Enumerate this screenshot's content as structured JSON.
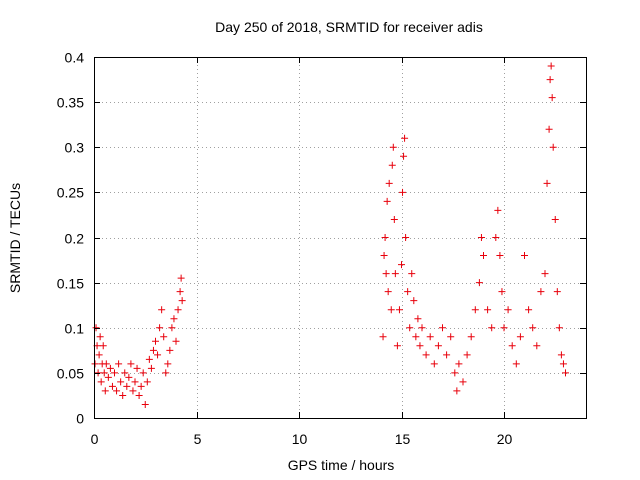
{
  "chart_data": {
    "type": "scatter",
    "title": "Day 250 of 2018, SRMTID for receiver adis",
    "xlabel": "GPS time / hours",
    "ylabel": "SRMTID / TECUs",
    "xlim": [
      0,
      24
    ],
    "ylim": [
      0,
      0.4
    ],
    "x_ticks": [
      0,
      5,
      10,
      15,
      20
    ],
    "x_tick_labels": [
      "0",
      "5",
      "10",
      "15",
      "20"
    ],
    "y_ticks": [
      0,
      0.05,
      0.1,
      0.15,
      0.2,
      0.25,
      0.3,
      0.35,
      0.4
    ],
    "y_tick_labels": [
      "0",
      "0.05",
      "0.1",
      "0.15",
      "0.2",
      "0.25",
      "0.3",
      "0.35",
      "0.4"
    ],
    "grid": true,
    "marker": "+",
    "color": "#e8000b",
    "series": [
      {
        "name": "SRMTID",
        "points": [
          [
            0.05,
            0.06
          ],
          [
            0.1,
            0.1
          ],
          [
            0.15,
            0.08
          ],
          [
            0.2,
            0.05
          ],
          [
            0.25,
            0.07
          ],
          [
            0.3,
            0.09
          ],
          [
            0.35,
            0.04
          ],
          [
            0.4,
            0.06
          ],
          [
            0.45,
            0.08
          ],
          [
            0.5,
            0.05
          ],
          [
            0.55,
            0.03
          ],
          [
            0.6,
            0.06
          ],
          [
            0.7,
            0.045
          ],
          [
            0.8,
            0.055
          ],
          [
            0.9,
            0.035
          ],
          [
            1.0,
            0.05
          ],
          [
            1.1,
            0.03
          ],
          [
            1.2,
            0.06
          ],
          [
            1.3,
            0.04
          ],
          [
            1.4,
            0.025
          ],
          [
            1.5,
            0.05
          ],
          [
            1.6,
            0.035
          ],
          [
            1.7,
            0.045
          ],
          [
            1.8,
            0.06
          ],
          [
            1.9,
            0.03
          ],
          [
            2.0,
            0.04
          ],
          [
            2.1,
            0.055
          ],
          [
            2.2,
            0.025
          ],
          [
            2.3,
            0.035
          ],
          [
            2.4,
            0.05
          ],
          [
            2.5,
            0.015
          ],
          [
            2.6,
            0.04
          ],
          [
            2.7,
            0.065
          ],
          [
            2.8,
            0.055
          ],
          [
            2.9,
            0.075
          ],
          [
            3.0,
            0.085
          ],
          [
            3.1,
            0.07
          ],
          [
            3.2,
            0.1
          ],
          [
            3.3,
            0.12
          ],
          [
            3.4,
            0.09
          ],
          [
            3.5,
            0.05
          ],
          [
            3.6,
            0.06
          ],
          [
            3.7,
            0.075
          ],
          [
            3.8,
            0.1
          ],
          [
            3.9,
            0.11
          ],
          [
            4.0,
            0.085
          ],
          [
            4.1,
            0.12
          ],
          [
            4.2,
            0.14
          ],
          [
            4.25,
            0.155
          ],
          [
            4.3,
            0.13
          ],
          [
            14.1,
            0.09
          ],
          [
            14.15,
            0.18
          ],
          [
            14.2,
            0.2
          ],
          [
            14.25,
            0.16
          ],
          [
            14.3,
            0.24
          ],
          [
            14.35,
            0.14
          ],
          [
            14.4,
            0.26
          ],
          [
            14.5,
            0.12
          ],
          [
            14.55,
            0.28
          ],
          [
            14.6,
            0.3
          ],
          [
            14.65,
            0.22
          ],
          [
            14.7,
            0.16
          ],
          [
            14.8,
            0.08
          ],
          [
            14.9,
            0.12
          ],
          [
            15.0,
            0.17
          ],
          [
            15.05,
            0.25
          ],
          [
            15.1,
            0.29
          ],
          [
            15.15,
            0.31
          ],
          [
            15.2,
            0.2
          ],
          [
            15.3,
            0.14
          ],
          [
            15.4,
            0.1
          ],
          [
            15.5,
            0.16
          ],
          [
            15.6,
            0.13
          ],
          [
            15.7,
            0.09
          ],
          [
            15.8,
            0.11
          ],
          [
            15.9,
            0.08
          ],
          [
            16.0,
            0.1
          ],
          [
            16.2,
            0.07
          ],
          [
            16.4,
            0.09
          ],
          [
            16.6,
            0.06
          ],
          [
            16.8,
            0.08
          ],
          [
            17.0,
            0.1
          ],
          [
            17.2,
            0.07
          ],
          [
            17.4,
            0.09
          ],
          [
            17.6,
            0.05
          ],
          [
            17.7,
            0.03
          ],
          [
            17.8,
            0.06
          ],
          [
            18.0,
            0.04
          ],
          [
            18.2,
            0.07
          ],
          [
            18.4,
            0.09
          ],
          [
            18.6,
            0.12
          ],
          [
            18.8,
            0.15
          ],
          [
            18.9,
            0.2
          ],
          [
            19.0,
            0.18
          ],
          [
            19.2,
            0.12
          ],
          [
            19.4,
            0.1
          ],
          [
            19.6,
            0.2
          ],
          [
            19.7,
            0.23
          ],
          [
            19.8,
            0.18
          ],
          [
            19.9,
            0.14
          ],
          [
            20.0,
            0.1
          ],
          [
            20.2,
            0.12
          ],
          [
            20.4,
            0.08
          ],
          [
            20.6,
            0.06
          ],
          [
            20.8,
            0.09
          ],
          [
            21.0,
            0.18
          ],
          [
            21.2,
            0.12
          ],
          [
            21.4,
            0.1
          ],
          [
            21.6,
            0.08
          ],
          [
            21.8,
            0.14
          ],
          [
            22.0,
            0.16
          ],
          [
            22.1,
            0.26
          ],
          [
            22.2,
            0.32
          ],
          [
            22.25,
            0.375
          ],
          [
            22.3,
            0.39
          ],
          [
            22.35,
            0.355
          ],
          [
            22.4,
            0.3
          ],
          [
            22.5,
            0.22
          ],
          [
            22.6,
            0.14
          ],
          [
            22.7,
            0.1
          ],
          [
            22.8,
            0.07
          ],
          [
            22.9,
            0.06
          ],
          [
            23.0,
            0.05
          ]
        ]
      }
    ]
  }
}
